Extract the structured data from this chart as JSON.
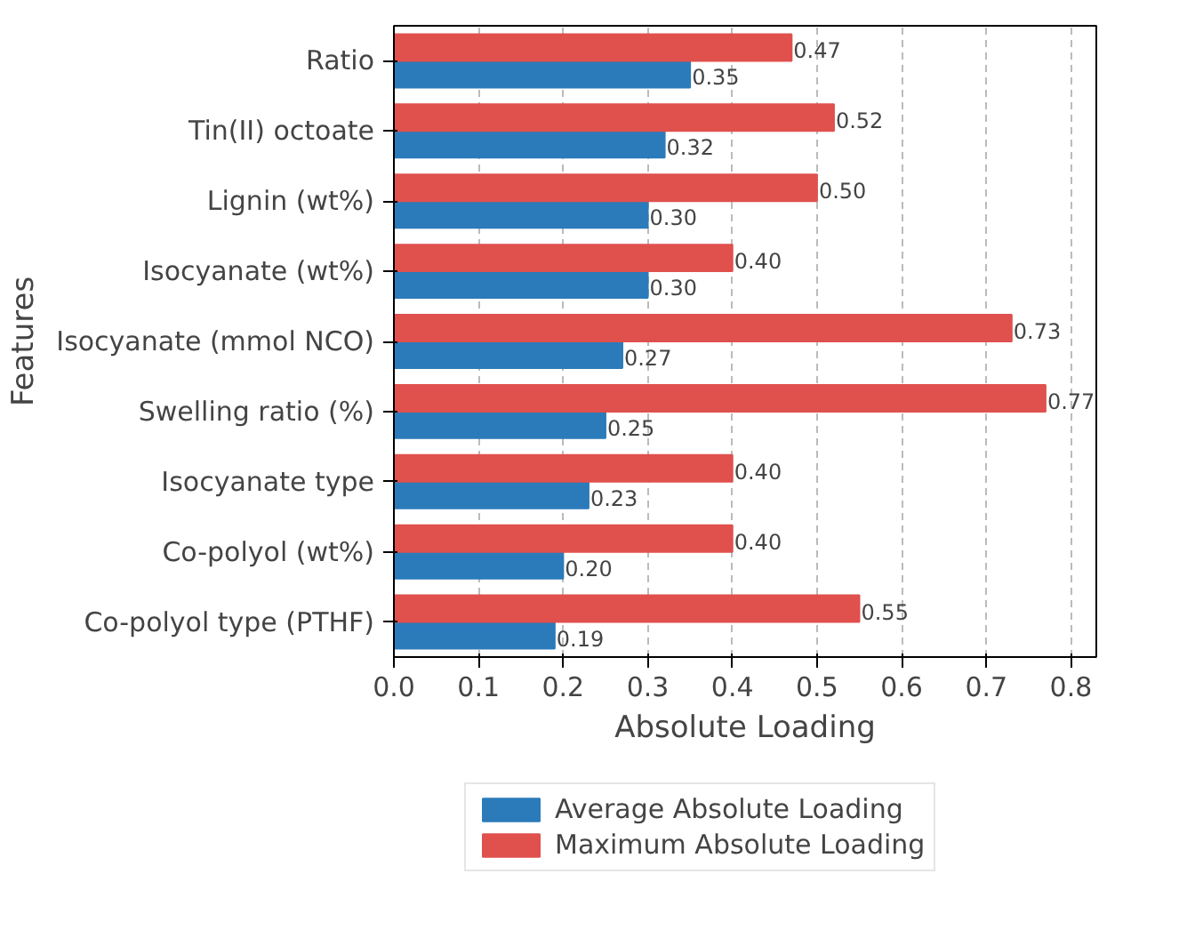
{
  "chart_data": {
    "type": "bar",
    "orientation": "horizontal",
    "xlabel": "Absolute Loading",
    "ylabel": "Features",
    "categories": [
      "Ratio",
      "Tin(II) octoate",
      "Lignin (wt%)",
      "Isocyanate (wt%)",
      "Isocyanate (mmol NCO)",
      "Swelling ratio (%)",
      "Isocyanate type",
      "Co-polyol (wt%)",
      "Co-polyol type (PTHF)"
    ],
    "series": [
      {
        "name": "Average Absolute Loading",
        "color": "#2b7bba",
        "values": [
          0.35,
          0.32,
          0.3,
          0.3,
          0.27,
          0.25,
          0.23,
          0.2,
          0.19
        ],
        "value_labels": [
          "0.35",
          "0.32",
          "0.30",
          "0.30",
          "0.27",
          "0.25",
          "0.23",
          "0.20",
          "0.19"
        ]
      },
      {
        "name": "Maximum Absolute Loading",
        "color": "#e0504d",
        "values": [
          0.47,
          0.52,
          0.5,
          0.4,
          0.73,
          0.77,
          0.4,
          0.4,
          0.55
        ],
        "value_labels": [
          "0.47",
          "0.52",
          "0.50",
          "0.40",
          "0.73",
          "0.77",
          "0.40",
          "0.40",
          "0.55"
        ]
      }
    ],
    "xlim": [
      0,
      0.83
    ],
    "xticks": [
      {
        "value": 0,
        "label": "0.0"
      },
      0.1,
      0.2,
      0.3,
      0.4,
      0.5,
      0.6,
      0.7,
      0.8
    ],
    "grid": "x",
    "legend": "bottom"
  }
}
